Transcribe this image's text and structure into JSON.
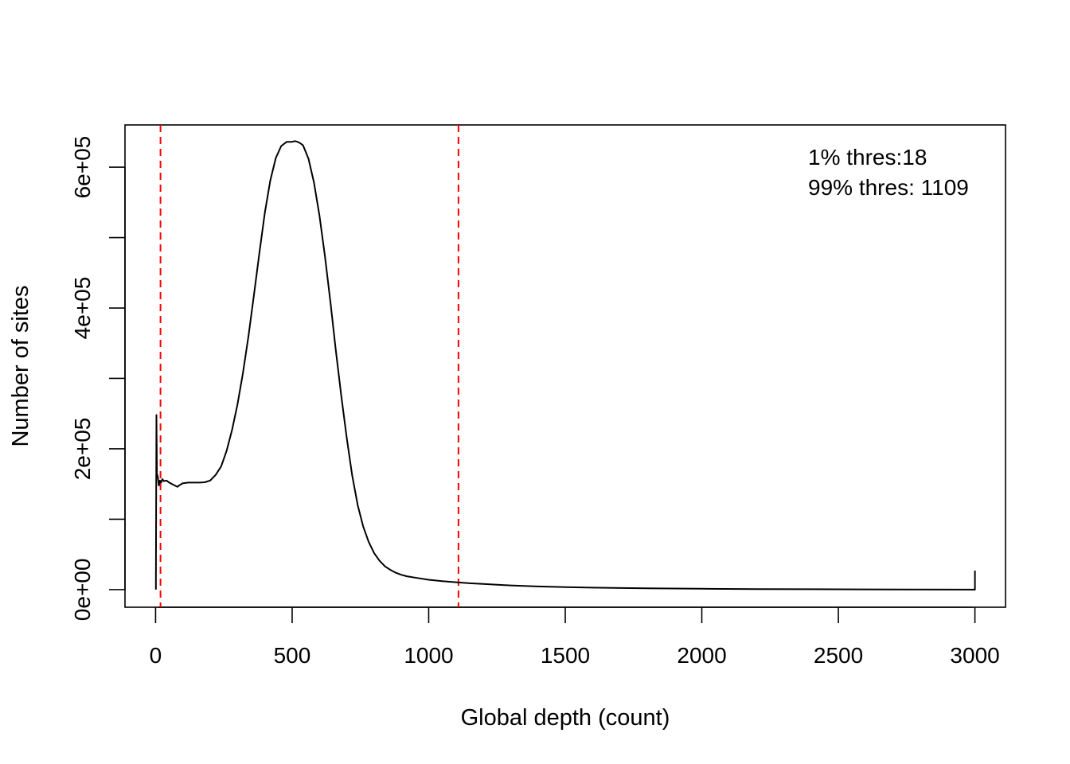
{
  "chart_data": {
    "type": "line",
    "title": "",
    "xlabel": "Global depth (count)",
    "ylabel": "Number of sites",
    "xlim": [
      -112,
      3112
    ],
    "ylim": [
      -25000,
      660000
    ],
    "xticks": [
      0,
      500,
      1000,
      1500,
      2000,
      2500,
      3000
    ],
    "xtick_labels": [
      "0",
      "500",
      "1000",
      "1500",
      "2000",
      "2500",
      "3000"
    ],
    "yticks": [
      0,
      100000,
      200000,
      300000,
      400000,
      500000,
      600000
    ],
    "ytick_labels": [
      "0e+00",
      "",
      "2e+05",
      "",
      "4e+05",
      "",
      "6e+05"
    ],
    "grid": false,
    "series": [
      {
        "color": "#000000",
        "x": [
          1,
          3,
          5,
          8,
          12,
          16,
          20,
          25,
          30,
          40,
          50,
          60,
          70,
          80,
          90,
          100,
          120,
          140,
          160,
          180,
          200,
          220,
          240,
          260,
          280,
          300,
          320,
          340,
          360,
          380,
          400,
          420,
          440,
          460,
          480,
          500,
          510,
          520,
          530,
          540,
          560,
          580,
          600,
          620,
          640,
          660,
          680,
          700,
          720,
          740,
          760,
          780,
          800,
          820,
          840,
          860,
          880,
          900,
          920,
          950,
          1000,
          1050,
          1100,
          1150,
          1200,
          1300,
          1400,
          1500,
          1600,
          1800,
          2000,
          2200,
          2400,
          2600,
          2800,
          2995,
          3000,
          3000
        ],
        "values": [
          0,
          248000,
          165000,
          160000,
          148000,
          155000,
          152000,
          157000,
          154000,
          155000,
          152000,
          150000,
          148000,
          146000,
          149000,
          151000,
          152000,
          152000,
          152000,
          152500,
          155000,
          163000,
          175000,
          197000,
          227000,
          263000,
          308000,
          360000,
          418000,
          478000,
          535000,
          581000,
          613000,
          630000,
          636000,
          636000,
          637000,
          636000,
          634000,
          631000,
          612000,
          578000,
          531000,
          474000,
          409000,
          340000,
          275000,
          215000,
          162000,
          120000,
          90000,
          68000,
          52000,
          41000,
          33000,
          28000,
          24000,
          21000,
          19000,
          17000,
          14000,
          12000,
          10500,
          9000,
          8000,
          6000,
          4500,
          3500,
          2800,
          1800,
          1200,
          800,
          500,
          300,
          150,
          0,
          0,
          27000
        ]
      }
    ],
    "thresholds": [
      {
        "x": 18,
        "color": "#ff0000",
        "style": "dashed"
      },
      {
        "x": 1109,
        "color": "#ff0000",
        "style": "dashed"
      }
    ],
    "annotations": [
      "1% thres:18",
      "99% thres: 1109"
    ],
    "annotation_placement": "top-right"
  }
}
